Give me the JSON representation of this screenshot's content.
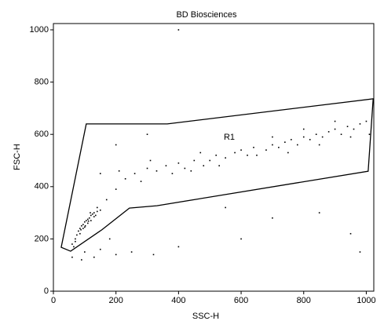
{
  "chart_data": {
    "type": "scatter",
    "title": "BD Biosciences",
    "xlabel": "SSC-H",
    "ylabel": "FSC-H",
    "xlim": [
      0,
      1024
    ],
    "ylim": [
      0,
      1024
    ],
    "xticks": [
      0,
      200,
      400,
      600,
      800,
      1000
    ],
    "yticks": [
      0,
      200,
      400,
      600,
      800,
      1000
    ],
    "color": "#000000",
    "x": [
      60,
      70,
      75,
      80,
      85,
      90,
      95,
      100,
      105,
      110,
      115,
      120,
      125,
      130,
      85,
      95,
      100,
      110,
      120,
      130,
      140,
      150,
      70,
      88,
      102,
      112,
      118,
      135,
      65,
      140,
      60,
      100,
      150,
      200,
      130,
      90,
      180,
      250,
      320,
      400,
      200,
      230,
      260,
      300,
      330,
      360,
      400,
      420,
      450,
      480,
      500,
      520,
      550,
      580,
      600,
      620,
      640,
      170,
      280,
      380,
      440,
      530,
      210,
      310,
      470,
      650,
      680,
      700,
      720,
      740,
      760,
      780,
      800,
      820,
      840,
      860,
      880,
      900,
      920,
      940,
      960,
      980,
      1000,
      750,
      850,
      950,
      700,
      800,
      900,
      1010,
      400,
      950,
      700,
      600,
      850,
      300,
      200,
      550,
      980,
      150
    ],
    "y": [
      180,
      200,
      215,
      230,
      240,
      250,
      255,
      265,
      270,
      275,
      280,
      290,
      295,
      300,
      220,
      240,
      245,
      260,
      270,
      285,
      305,
      310,
      190,
      235,
      250,
      268,
      300,
      290,
      170,
      320,
      130,
      150,
      160,
      140,
      130,
      120,
      200,
      150,
      140,
      170,
      390,
      430,
      450,
      470,
      460,
      480,
      490,
      470,
      500,
      480,
      500,
      520,
      510,
      530,
      540,
      520,
      550,
      350,
      420,
      450,
      460,
      480,
      460,
      500,
      530,
      520,
      540,
      560,
      550,
      570,
      580,
      560,
      590,
      580,
      600,
      590,
      610,
      620,
      600,
      630,
      620,
      640,
      650,
      530,
      560,
      590,
      590,
      620,
      650,
      600,
      1000,
      220,
      280,
      200,
      300,
      600,
      560,
      320,
      150,
      450
    ],
    "gate": {
      "label": "R1",
      "x": [
        25,
        105,
        364,
        1022,
        1006,
        331,
        243,
        155,
        55
      ],
      "y": [
        168,
        640,
        640,
        736,
        459,
        327,
        318,
        235,
        153
      ]
    }
  }
}
